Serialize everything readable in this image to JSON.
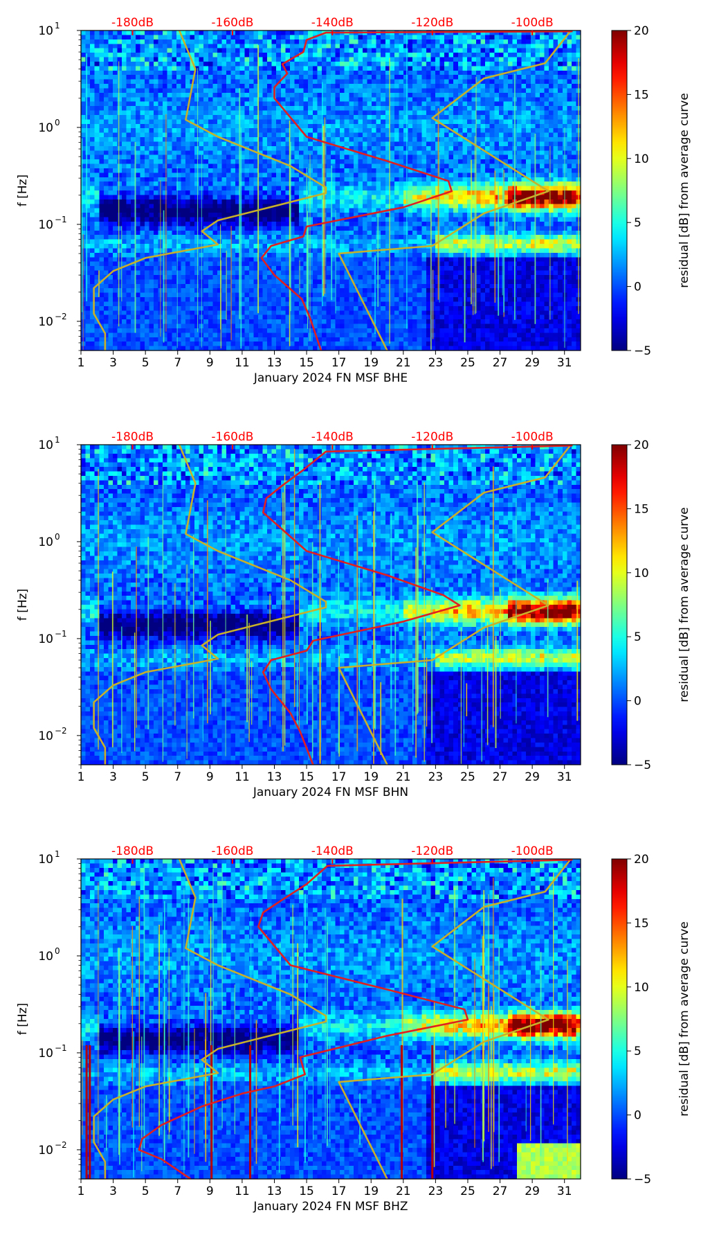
{
  "figure": {
    "panels": [
      "BHE",
      "BHN",
      "BHZ"
    ]
  },
  "chart_data": [
    {
      "type": "heatmap",
      "xlabel": "January 2024 FN MSF  BHE",
      "ylabel": "f [Hz]",
      "x_ticks": [
        "1",
        "3",
        "5",
        "7",
        "9",
        "11",
        "13",
        "15",
        "17",
        "19",
        "21",
        "23",
        "25",
        "27",
        "29",
        "31"
      ],
      "x_tick_values": [
        1,
        3,
        5,
        7,
        9,
        11,
        13,
        15,
        17,
        19,
        21,
        23,
        25,
        27,
        29,
        31
      ],
      "xlim": [
        1,
        32
      ],
      "y_scale": "log",
      "ylim": [
        0.005,
        10
      ],
      "y_ticks": [
        {
          "base": "10",
          "exp": "1",
          "value": 10
        },
        {
          "base": "10",
          "exp": "0",
          "value": 1
        },
        {
          "base": "10",
          "exp": "−1",
          "value": 0.1
        },
        {
          "base": "10",
          "exp": "−2",
          "value": 0.01
        }
      ],
      "top_ticks": [
        "-180dB",
        "-160dB",
        "-140dB",
        "-120dB",
        "-100dB"
      ],
      "top_tick_positions": [
        4.2,
        10.4,
        16.6,
        22.8,
        29.0
      ],
      "colorbar": {
        "label": "residual [dB] from average curve",
        "min": -5,
        "max": 20,
        "ticks": [
          "20",
          "15",
          "10",
          "5",
          "0",
          "−5"
        ],
        "tick_values": [
          20,
          15,
          10,
          5,
          0,
          -5
        ],
        "colormap": "jet"
      },
      "series": [
        {
          "color": "#c8b02a",
          "points": [
            [
              2.5,
              0.005
            ],
            [
              2.5,
              0.0075
            ],
            [
              1.8,
              0.012
            ],
            [
              1.8,
              0.022
            ],
            [
              3.0,
              0.033
            ],
            [
              5.0,
              0.045
            ],
            [
              9.5,
              0.062
            ],
            [
              8.5,
              0.085
            ],
            [
              9.5,
              0.11
            ],
            [
              16.2,
              0.21
            ],
            [
              16.2,
              0.24
            ],
            [
              14.0,
              0.4
            ],
            [
              9.5,
              0.8
            ],
            [
              7.5,
              1.2
            ],
            [
              8.1,
              4.0
            ],
            [
              7.1,
              10
            ]
          ]
        },
        {
          "color": "#c8b02a",
          "points": [
            [
              20.0,
              0.005
            ],
            [
              17.0,
              0.05
            ],
            [
              22.8,
              0.06
            ],
            [
              26.0,
              0.13
            ],
            [
              30.0,
              0.22
            ],
            [
              22.8,
              1.25
            ],
            [
              26.0,
              3.2
            ],
            [
              29.8,
              4.6
            ],
            [
              31.4,
              10
            ]
          ]
        },
        {
          "color": "#e02020",
          "points": [
            [
              15.9,
              0.005
            ],
            [
              15.2,
              0.011
            ],
            [
              14.7,
              0.017
            ],
            [
              13.0,
              0.03
            ],
            [
              12.2,
              0.045
            ],
            [
              12.8,
              0.06
            ],
            [
              14.8,
              0.075
            ],
            [
              15.0,
              0.095
            ],
            [
              21.0,
              0.15
            ],
            [
              24.0,
              0.22
            ],
            [
              23.8,
              0.28
            ],
            [
              20.0,
              0.45
            ],
            [
              15.0,
              0.8
            ],
            [
              13.0,
              2.0
            ],
            [
              13.0,
              2.6
            ],
            [
              13.8,
              3.6
            ],
            [
              13.5,
              4.5
            ],
            [
              14.8,
              6.0
            ],
            [
              15.0,
              8.0
            ],
            [
              16.2,
              9.5
            ],
            [
              31.5,
              9.8
            ]
          ]
        }
      ]
    },
    {
      "type": "heatmap",
      "xlabel": "January 2024 FN MSF  BHN",
      "ylabel": "f [Hz]",
      "x_ticks": [
        "1",
        "3",
        "5",
        "7",
        "9",
        "11",
        "13",
        "15",
        "17",
        "19",
        "21",
        "23",
        "25",
        "27",
        "29",
        "31"
      ],
      "x_tick_values": [
        1,
        3,
        5,
        7,
        9,
        11,
        13,
        15,
        17,
        19,
        21,
        23,
        25,
        27,
        29,
        31
      ],
      "xlim": [
        1,
        32
      ],
      "y_scale": "log",
      "ylim": [
        0.005,
        10
      ],
      "y_ticks": [
        {
          "base": "10",
          "exp": "1",
          "value": 10
        },
        {
          "base": "10",
          "exp": "0",
          "value": 1
        },
        {
          "base": "10",
          "exp": "−1",
          "value": 0.1
        },
        {
          "base": "10",
          "exp": "−2",
          "value": 0.01
        }
      ],
      "top_ticks": [
        "-180dB",
        "-160dB",
        "-140dB",
        "-120dB",
        "-100dB"
      ],
      "top_tick_positions": [
        4.2,
        10.4,
        16.6,
        22.8,
        29.0
      ],
      "colorbar": {
        "label": "residual [dB] from average curve",
        "min": -5,
        "max": 20,
        "ticks": [
          "20",
          "15",
          "10",
          "5",
          "0",
          "−5"
        ],
        "tick_values": [
          20,
          15,
          10,
          5,
          0,
          -5
        ],
        "colormap": "jet"
      },
      "series": [
        {
          "color": "#c8b02a",
          "points": [
            [
              2.5,
              0.005
            ],
            [
              2.5,
              0.0075
            ],
            [
              1.8,
              0.012
            ],
            [
              1.8,
              0.022
            ],
            [
              3.0,
              0.033
            ],
            [
              5.0,
              0.045
            ],
            [
              9.5,
              0.062
            ],
            [
              8.5,
              0.085
            ],
            [
              9.5,
              0.11
            ],
            [
              16.2,
              0.21
            ],
            [
              16.2,
              0.24
            ],
            [
              14.0,
              0.4
            ],
            [
              9.5,
              0.8
            ],
            [
              7.5,
              1.2
            ],
            [
              8.1,
              4.0
            ],
            [
              7.1,
              10
            ]
          ]
        },
        {
          "color": "#c8b02a",
          "points": [
            [
              20.0,
              0.005
            ],
            [
              17.0,
              0.05
            ],
            [
              22.8,
              0.06
            ],
            [
              26.0,
              0.13
            ],
            [
              30.0,
              0.22
            ],
            [
              22.8,
              1.25
            ],
            [
              26.0,
              3.2
            ],
            [
              29.8,
              4.6
            ],
            [
              31.4,
              10
            ]
          ]
        },
        {
          "color": "#e02020",
          "points": [
            [
              15.4,
              0.005
            ],
            [
              14.6,
              0.011
            ],
            [
              14.0,
              0.017
            ],
            [
              12.8,
              0.03
            ],
            [
              12.3,
              0.045
            ],
            [
              12.8,
              0.06
            ],
            [
              15.0,
              0.075
            ],
            [
              15.4,
              0.095
            ],
            [
              21.0,
              0.15
            ],
            [
              24.5,
              0.22
            ],
            [
              23.5,
              0.28
            ],
            [
              20.0,
              0.45
            ],
            [
              15.0,
              0.8
            ],
            [
              12.3,
              2.0
            ],
            [
              12.5,
              2.8
            ],
            [
              13.5,
              3.8
            ],
            [
              14.8,
              5.5
            ],
            [
              16.2,
              8.5
            ],
            [
              31.5,
              9.8
            ]
          ]
        }
      ]
    },
    {
      "type": "heatmap",
      "xlabel": "January 2024 FN MSF  BHZ",
      "ylabel": "f [Hz]",
      "x_ticks": [
        "1",
        "3",
        "5",
        "7",
        "9",
        "11",
        "13",
        "15",
        "17",
        "19",
        "21",
        "23",
        "25",
        "27",
        "29",
        "31"
      ],
      "x_tick_values": [
        1,
        3,
        5,
        7,
        9,
        11,
        13,
        15,
        17,
        19,
        21,
        23,
        25,
        27,
        29,
        31
      ],
      "xlim": [
        1,
        32
      ],
      "y_scale": "log",
      "ylim": [
        0.005,
        10
      ],
      "y_ticks": [
        {
          "base": "10",
          "exp": "1",
          "value": 10
        },
        {
          "base": "10",
          "exp": "0",
          "value": 1
        },
        {
          "base": "10",
          "exp": "−1",
          "value": 0.1
        },
        {
          "base": "10",
          "exp": "−2",
          "value": 0.01
        }
      ],
      "top_ticks": [
        "-180dB",
        "-160dB",
        "-140dB",
        "-120dB",
        "-100dB"
      ],
      "top_tick_positions": [
        4.2,
        10.4,
        16.6,
        22.8,
        29.0
      ],
      "colorbar": {
        "label": "residual [dB] from average curve",
        "min": -5,
        "max": 20,
        "ticks": [
          "20",
          "15",
          "10",
          "5",
          "0",
          "−5"
        ],
        "tick_values": [
          20,
          15,
          10,
          5,
          0,
          -5
        ],
        "colormap": "jet"
      },
      "series": [
        {
          "color": "#c8b02a",
          "points": [
            [
              2.5,
              0.005
            ],
            [
              2.5,
              0.0075
            ],
            [
              1.8,
              0.012
            ],
            [
              1.8,
              0.022
            ],
            [
              3.0,
              0.033
            ],
            [
              5.0,
              0.045
            ],
            [
              9.5,
              0.062
            ],
            [
              8.5,
              0.085
            ],
            [
              9.5,
              0.11
            ],
            [
              16.2,
              0.21
            ],
            [
              16.2,
              0.24
            ],
            [
              14.0,
              0.4
            ],
            [
              9.5,
              0.8
            ],
            [
              7.5,
              1.2
            ],
            [
              8.1,
              4.0
            ],
            [
              7.1,
              10
            ]
          ]
        },
        {
          "color": "#c8b02a",
          "points": [
            [
              20.0,
              0.005
            ],
            [
              17.0,
              0.05
            ],
            [
              22.8,
              0.06
            ],
            [
              26.0,
              0.13
            ],
            [
              30.0,
              0.22
            ],
            [
              22.8,
              1.25
            ],
            [
              26.0,
              3.2
            ],
            [
              29.8,
              4.6
            ],
            [
              31.4,
              10
            ]
          ]
        },
        {
          "color": "#e02020",
          "points": [
            [
              7.8,
              0.005
            ],
            [
              6.0,
              0.008
            ],
            [
              4.6,
              0.01
            ],
            [
              4.8,
              0.013
            ],
            [
              6.0,
              0.018
            ],
            [
              8.5,
              0.028
            ],
            [
              11.0,
              0.038
            ],
            [
              13.0,
              0.045
            ],
            [
              14.9,
              0.06
            ],
            [
              14.6,
              0.09
            ],
            [
              20.0,
              0.15
            ],
            [
              25.0,
              0.22
            ],
            [
              24.8,
              0.28
            ],
            [
              20.0,
              0.45
            ],
            [
              14.0,
              0.8
            ],
            [
              12.0,
              2.0
            ],
            [
              12.3,
              2.8
            ],
            [
              13.5,
              3.8
            ],
            [
              15.0,
              5.5
            ],
            [
              16.3,
              8.5
            ],
            [
              31.5,
              9.8
            ]
          ]
        }
      ]
    }
  ]
}
